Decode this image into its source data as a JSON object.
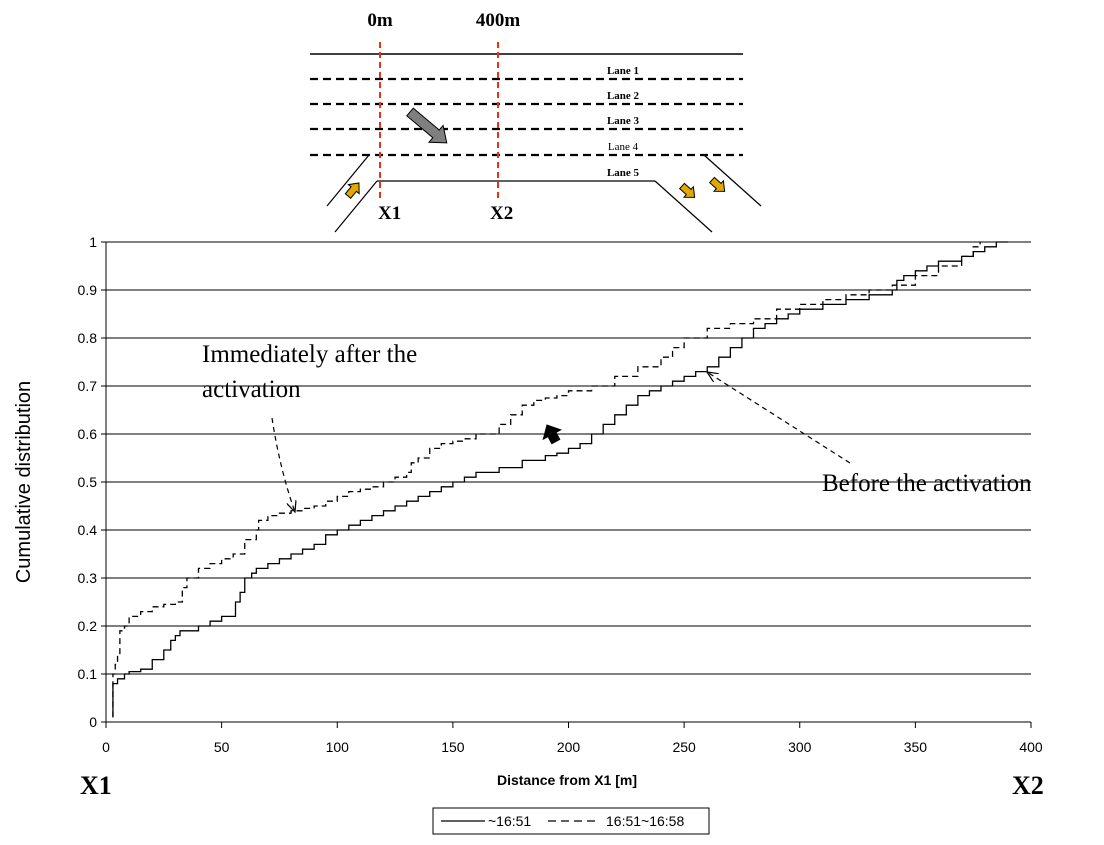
{
  "diagram": {
    "marker_labels": [
      "0m",
      "400m"
    ],
    "point_labels": [
      "X1",
      "X2"
    ],
    "lane_labels": [
      "Lane 1",
      "Lane 2",
      "Lane 3",
      "Lane 4",
      "Lane 5"
    ],
    "colors": {
      "marker_line": "#e8331c",
      "ramp_arrow": "#e0a800",
      "flow_arrow": "#7f7f7f"
    }
  },
  "chart_data": {
    "type": "line",
    "ylabel": "Cumulative distribution",
    "xlabel": "Distance from X1 [m]",
    "xlim": [
      0,
      400
    ],
    "ylim": [
      0,
      1
    ],
    "xticks": [
      0,
      50,
      100,
      150,
      200,
      250,
      300,
      350,
      400
    ],
    "yticks": [
      0,
      0.1,
      0.2,
      0.3,
      0.4,
      0.5,
      0.6,
      0.7,
      0.8,
      0.9,
      1
    ],
    "grid": "horizontal",
    "legend_position": "bottom-center",
    "end_labels": {
      "left": "X1",
      "right": "X2"
    },
    "series": [
      {
        "name": "~16:51",
        "style": "solid",
        "x": [
          3,
          3,
          5,
          8,
          10,
          15,
          20,
          25,
          28,
          30,
          32,
          33,
          40,
          45,
          50,
          55,
          56,
          58,
          60,
          63,
          65,
          70,
          75,
          80,
          85,
          90,
          95,
          100,
          105,
          110,
          115,
          120,
          125,
          130,
          135,
          140,
          145,
          150,
          155,
          160,
          170,
          180,
          190,
          195,
          200,
          205,
          210,
          215,
          220,
          225,
          230,
          235,
          240,
          245,
          250,
          255,
          260,
          265,
          270,
          275,
          280,
          285,
          290,
          295,
          300,
          310,
          320,
          330,
          340,
          342,
          345,
          350,
          355,
          360,
          370,
          375,
          380,
          385,
          390
        ],
        "y": [
          0.01,
          0.08,
          0.09,
          0.1,
          0.105,
          0.11,
          0.13,
          0.15,
          0.17,
          0.18,
          0.19,
          0.19,
          0.2,
          0.21,
          0.22,
          0.22,
          0.25,
          0.27,
          0.3,
          0.31,
          0.32,
          0.33,
          0.34,
          0.35,
          0.36,
          0.37,
          0.39,
          0.4,
          0.41,
          0.42,
          0.43,
          0.44,
          0.45,
          0.46,
          0.47,
          0.48,
          0.49,
          0.5,
          0.51,
          0.52,
          0.53,
          0.545,
          0.555,
          0.56,
          0.57,
          0.58,
          0.6,
          0.62,
          0.64,
          0.66,
          0.68,
          0.69,
          0.7,
          0.71,
          0.72,
          0.73,
          0.74,
          0.76,
          0.78,
          0.8,
          0.82,
          0.83,
          0.84,
          0.85,
          0.86,
          0.87,
          0.88,
          0.89,
          0.9,
          0.92,
          0.93,
          0.94,
          0.95,
          0.96,
          0.97,
          0.98,
          0.99,
          1.0,
          1.0
        ]
      },
      {
        "name": "16:51~16:58",
        "style": "dashed",
        "x": [
          3,
          3,
          4,
          5,
          6,
          8,
          10,
          15,
          20,
          25,
          30,
          33,
          35,
          40,
          45,
          50,
          55,
          60,
          65,
          66,
          70,
          75,
          80,
          85,
          90,
          95,
          100,
          105,
          110,
          115,
          120,
          125,
          130,
          132,
          135,
          140,
          145,
          150,
          155,
          160,
          170,
          175,
          180,
          185,
          190,
          195,
          200,
          210,
          220,
          230,
          240,
          245,
          250,
          260,
          270,
          280,
          290,
          300,
          310,
          320,
          330,
          340,
          350,
          360,
          370,
          375,
          378
        ],
        "y": [
          0.01,
          0.1,
          0.12,
          0.14,
          0.19,
          0.2,
          0.22,
          0.23,
          0.24,
          0.245,
          0.25,
          0.28,
          0.3,
          0.32,
          0.33,
          0.34,
          0.35,
          0.38,
          0.4,
          0.42,
          0.43,
          0.435,
          0.44,
          0.445,
          0.45,
          0.46,
          0.47,
          0.48,
          0.485,
          0.49,
          0.5,
          0.51,
          0.52,
          0.54,
          0.55,
          0.57,
          0.58,
          0.585,
          0.59,
          0.6,
          0.62,
          0.64,
          0.66,
          0.67,
          0.675,
          0.68,
          0.69,
          0.7,
          0.72,
          0.74,
          0.76,
          0.78,
          0.8,
          0.82,
          0.83,
          0.84,
          0.86,
          0.87,
          0.88,
          0.89,
          0.9,
          0.91,
          0.93,
          0.95,
          0.97,
          0.99,
          1.0
        ]
      }
    ],
    "annotations": [
      {
        "text": "Immediately after the activation",
        "lines": [
          "Immediately after the",
          "activation"
        ],
        "target_series": 1
      },
      {
        "text": "Before the activation",
        "target_series": 0
      }
    ]
  }
}
